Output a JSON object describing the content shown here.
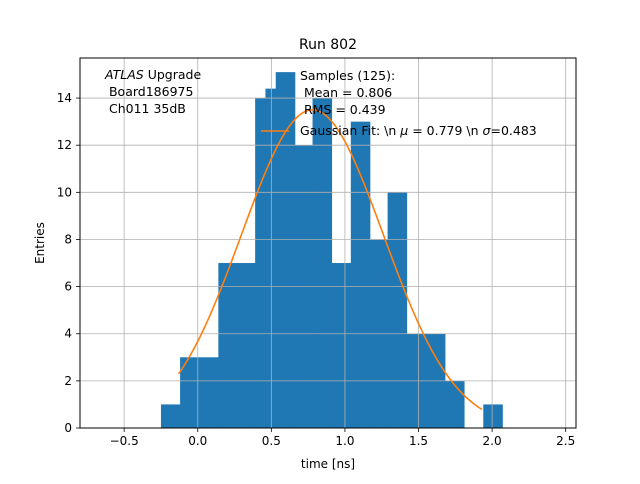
{
  "chart_data": {
    "type": "bar",
    "title": "Run 802",
    "xlabel": "time [ns]",
    "ylabel": "Entries",
    "xlim": [
      -0.8,
      2.57
    ],
    "ylim": [
      0,
      15.7
    ],
    "xticks": [
      -0.5,
      0.0,
      0.5,
      1.0,
      1.5,
      2.0,
      2.5
    ],
    "xtick_labels": [
      "−0.5",
      "0.0",
      "0.5",
      "1.0",
      "1.5",
      "2.0",
      "2.5"
    ],
    "yticks": [
      0,
      2,
      4,
      6,
      8,
      10,
      12,
      14
    ],
    "ytick_labels": [
      "0",
      "2",
      "4",
      "6",
      "8",
      "10",
      "12",
      "14"
    ],
    "grid": true,
    "bar_color": "#1f77b4",
    "fit_color": "#ff7f0e",
    "bins": [
      {
        "x0": -0.25,
        "x1": -0.12,
        "count": 1
      },
      {
        "x0": -0.12,
        "x1": 0.0,
        "count": 3
      },
      {
        "x0": 0.0,
        "x1": 0.14,
        "count": 3
      },
      {
        "x0": 0.14,
        "x1": 0.39,
        "count": 7
      },
      {
        "x0": 0.39,
        "x1": 0.46,
        "count": 14
      },
      {
        "x0": 0.46,
        "x1": 0.53,
        "count": 14.4
      },
      {
        "x0": 0.53,
        "x1": 0.66,
        "count": 15.1
      },
      {
        "x0": 0.66,
        "x1": 0.78,
        "count": 12
      },
      {
        "x0": 0.78,
        "x1": 0.91,
        "count": 14
      },
      {
        "x0": 0.91,
        "x1": 1.04,
        "count": 7
      },
      {
        "x0": 1.04,
        "x1": 1.17,
        "count": 13
      },
      {
        "x0": 1.17,
        "x1": 1.29,
        "count": 8
      },
      {
        "x0": 1.29,
        "x1": 1.42,
        "count": 10
      },
      {
        "x0": 1.42,
        "x1": 1.68,
        "count": 4
      },
      {
        "x0": 1.68,
        "x1": 1.81,
        "count": 2
      },
      {
        "x0": 1.81,
        "x1": 1.94,
        "count": 0
      },
      {
        "x0": 1.94,
        "x1": 2.07,
        "count": 1
      }
    ],
    "fit": {
      "label_prefix": "Gaussian Fit: \\n ",
      "label_mu": "μ",
      "label_mid": " = 0.779 \\n ",
      "label_sigma": "σ",
      "label_suffix": "=0.483",
      "mu": 0.779,
      "sigma": 0.483,
      "amplitude": 13.5,
      "x_range": [
        -0.13,
        1.93
      ]
    },
    "annotations": {
      "experiment_italic": "ATLAS",
      "experiment_rest": " Upgrade",
      "board": " Board186975",
      "channel": " Ch011 35dB",
      "samples": "Samples (125):",
      "mean": " Mean = 0.806",
      "rms": " RMS = 0.439"
    }
  }
}
